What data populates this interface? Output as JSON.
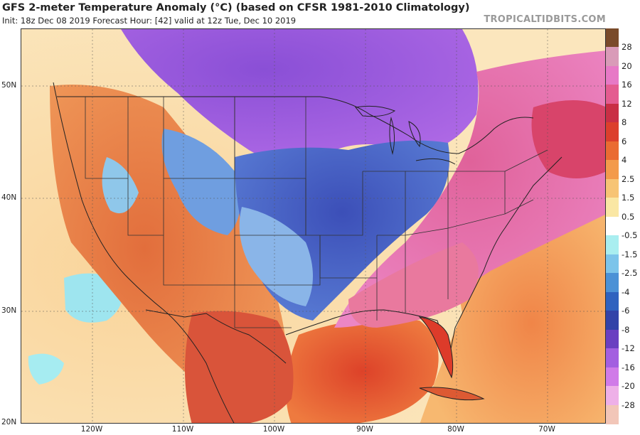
{
  "header": {
    "title": "GFS 2-meter Temperature Anomaly (°C) (based on CFSR 1981-2010 Climatology)",
    "subtitle": "Init: 18z Dec 08 2019   Forecast Hour: [42]   valid at 12z Tue, Dec 10 2019",
    "watermark": "TROPICALTIDBITS.COM"
  },
  "map": {
    "region": "Continental United States",
    "variable": "2-meter temperature anomaly",
    "units": "°C",
    "lat_labels": [
      "50N",
      "40N",
      "30N",
      "20N"
    ],
    "lon_labels": [
      "120W",
      "110W",
      "100W",
      "90W",
      "80W",
      "70W"
    ]
  },
  "colorbar": {
    "labels": [
      "28",
      "20",
      "16",
      "12",
      "8",
      "6",
      "4",
      "2.5",
      "1.5",
      "0.5",
      "-0.5",
      "-1.5",
      "-2.5",
      "-4",
      "-6",
      "-8",
      "-12",
      "-16",
      "-20",
      "-28"
    ],
    "colors": [
      "#7a4b2a",
      "#d99bb8",
      "#e779c6",
      "#e45c90",
      "#c92f45",
      "#dc3f2c",
      "#ea6b32",
      "#f39a4b",
      "#f7c475",
      "#fae7a4",
      "#ffffff",
      "#a9eef0",
      "#7cc4ea",
      "#4b91d6",
      "#2f62bf",
      "#3243a8",
      "#6a3fc1",
      "#a35fe0",
      "#d07be8",
      "#eeb0e8",
      "#f2c6b8"
    ]
  }
}
